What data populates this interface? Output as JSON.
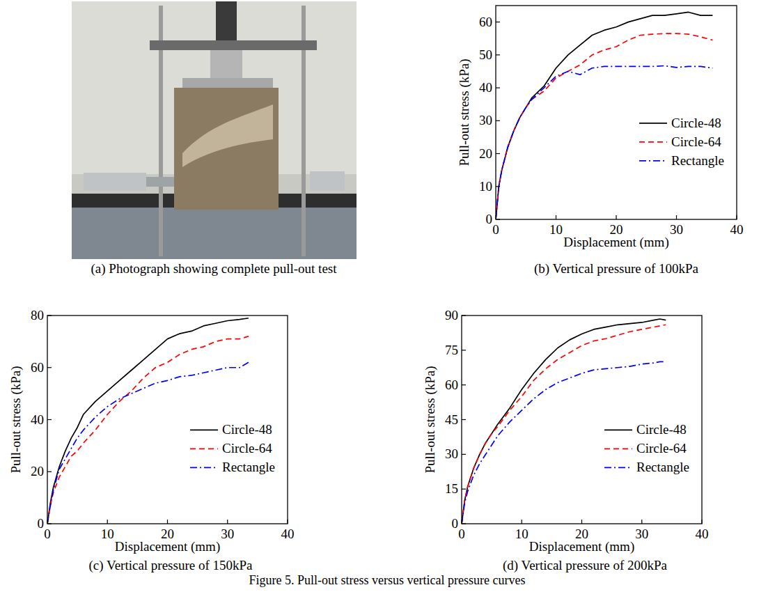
{
  "figure": {
    "caption": "Figure 5. Pull-out stress versus vertical pressure curves"
  },
  "photo": {
    "caption": "(a) Photograph showing complete pull-out test"
  },
  "chart_data": [
    {
      "type": "line",
      "title": "(b) Vertical pressure of 100kPa",
      "x_label": "Displacement (mm)",
      "y_label": "Pull-out stress (kPa)",
      "x": [
        0,
        0.5,
        1,
        2,
        3,
        4,
        5,
        6,
        8,
        10,
        12,
        14,
        16,
        18,
        20,
        22,
        24,
        26,
        28,
        30,
        32,
        34,
        36
      ],
      "series": [
        {
          "name": "Circle-48",
          "color": "#000000",
          "line_style": "solid",
          "values": [
            0,
            10,
            15,
            22,
            27,
            31,
            34,
            37,
            40.5,
            46,
            50,
            53,
            56,
            57.5,
            58.5,
            60,
            61,
            62,
            62,
            62.5,
            63,
            62,
            62
          ]
        },
        {
          "name": "Circle-64",
          "color": "#ff0000",
          "line_style": "dashed",
          "values": [
            0,
            10,
            15,
            22,
            27,
            31,
            34,
            36.5,
            39,
            43,
            45,
            47,
            50,
            51.5,
            52.5,
            54.5,
            56,
            56.3,
            56.5,
            56.5,
            56.3,
            55.5,
            54.5
          ]
        },
        {
          "name": "Rectangle",
          "color": "#0000ff",
          "line_style": "dashdot",
          "values": [
            0,
            10,
            15,
            22,
            27,
            31,
            34,
            36.5,
            40,
            43.5,
            45,
            44,
            46,
            46.5,
            46.5,
            46.5,
            46.5,
            46.5,
            46.7,
            46.2,
            46.5,
            46.5,
            46
          ]
        }
      ],
      "xlim": [
        0,
        40
      ],
      "xticks": [
        0,
        10,
        20,
        30,
        40
      ],
      "ylim": [
        0,
        65
      ],
      "yticks": [
        0,
        10,
        20,
        30,
        40,
        50,
        60
      ],
      "grid": false,
      "legend": "lower right"
    },
    {
      "type": "line",
      "title": "(c) Vertical pressure of 150kPa",
      "x_label": "Displacement (mm)",
      "y_label": "Pull-out stress (kPa)",
      "x": [
        0,
        0.5,
        1,
        2,
        3,
        4,
        5,
        6,
        8,
        10,
        12,
        14,
        16,
        18,
        20,
        22,
        24,
        26,
        28,
        30,
        32,
        33.5
      ],
      "series": [
        {
          "name": "Circle-48",
          "color": "#000000",
          "line_style": "solid",
          "values": [
            0,
            8,
            14,
            22,
            28,
            33,
            37,
            42,
            47,
            51,
            55,
            59,
            63,
            67,
            71,
            73,
            74,
            76,
            77,
            78,
            78.5,
            79
          ]
        },
        {
          "name": "Circle-64",
          "color": "#ff0000",
          "line_style": "dashed",
          "values": [
            0,
            7,
            12,
            18,
            22,
            26,
            28,
            31,
            36,
            42,
            47,
            51,
            56,
            60,
            62,
            65,
            67,
            68,
            70,
            71,
            71,
            72
          ]
        },
        {
          "name": "Rectangle",
          "color": "#0000ff",
          "line_style": "dashdot",
          "values": [
            0,
            7,
            13,
            21,
            25,
            29,
            33,
            36,
            41,
            45,
            48,
            50,
            52,
            54,
            55,
            56.5,
            57,
            58,
            59,
            60,
            60,
            62
          ]
        }
      ],
      "xlim": [
        0,
        40
      ],
      "xticks": [
        0,
        10,
        20,
        30,
        40
      ],
      "ylim": [
        0,
        80
      ],
      "yticks": [
        0,
        20,
        40,
        60,
        80
      ],
      "grid": false,
      "legend": "lower right"
    },
    {
      "type": "line",
      "title": "(d) Vertical pressure of 200kPa",
      "x_label": "Displacement (mm)",
      "y_label": "Pull-out stress (kPa)",
      "x": [
        0,
        0.5,
        1,
        2,
        3,
        4,
        5,
        6,
        8,
        10,
        12,
        14,
        16,
        18,
        20,
        22,
        24,
        26,
        28,
        30,
        32,
        33,
        34
      ],
      "series": [
        {
          "name": "Circle-48",
          "color": "#000000",
          "line_style": "solid",
          "values": [
            0,
            10,
            16,
            24,
            30,
            35,
            39,
            43,
            50,
            58,
            65,
            71,
            76,
            79.5,
            82,
            84,
            85,
            86,
            86.5,
            87,
            88,
            88.5,
            88
          ]
        },
        {
          "name": "Circle-64",
          "color": "#ff0000",
          "line_style": "dashed",
          "values": [
            0,
            10,
            16,
            24,
            30,
            35,
            39,
            42,
            49,
            55,
            62,
            67,
            71,
            74,
            77,
            79,
            80,
            81.5,
            83,
            84,
            85,
            85.5,
            86
          ]
        },
        {
          "name": "Rectangle",
          "color": "#0000ff",
          "line_style": "dashdot",
          "values": [
            0,
            9,
            14,
            21,
            26,
            30,
            34,
            38,
            44,
            49,
            54,
            58,
            61,
            63,
            65,
            66.5,
            67,
            67.5,
            68,
            69,
            69.5,
            70,
            70
          ]
        }
      ],
      "xlim": [
        0,
        40
      ],
      "xticks": [
        0,
        10,
        20,
        30,
        40
      ],
      "ylim": [
        0,
        90
      ],
      "yticks": [
        0,
        15,
        30,
        45,
        60,
        75,
        90
      ],
      "grid": false,
      "legend": "lower right"
    }
  ]
}
